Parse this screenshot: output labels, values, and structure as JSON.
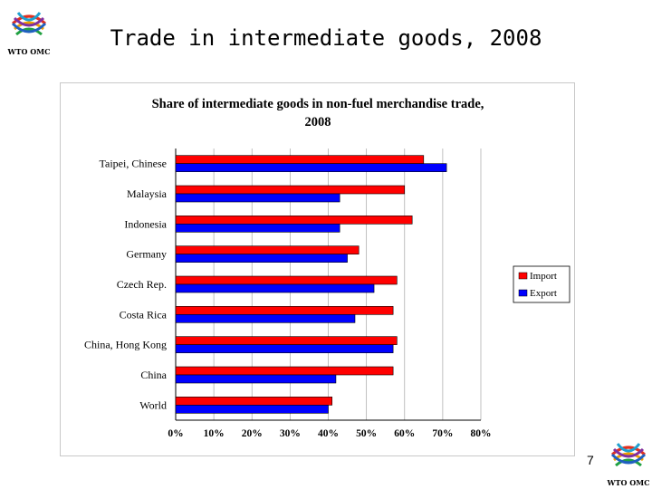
{
  "slide": {
    "title": "Trade in intermediate goods, 2008",
    "page_number": "7",
    "logo_text": "WTO OMC"
  },
  "chart_data": {
    "type": "bar",
    "orientation": "horizontal",
    "title": "Share of intermediate goods in non-fuel merchandise trade, 2008",
    "title_lines": [
      "Share of intermediate goods in non-fuel merchandise trade,",
      "2008"
    ],
    "categories": [
      "Taipei, Chinese",
      "Malaysia",
      "Indonesia",
      "Germany",
      "Czech Rep.",
      "Costa Rica",
      "China, Hong Kong",
      "China",
      "World"
    ],
    "series": [
      {
        "name": "Import",
        "color": "#ff0000",
        "values": [
          65,
          60,
          62,
          48,
          58,
          57,
          58,
          57,
          41
        ]
      },
      {
        "name": "Export",
        "color": "#0000ff",
        "values": [
          71,
          43,
          43,
          45,
          52,
          47,
          57,
          42,
          40
        ]
      }
    ],
    "xlim": [
      0,
      80
    ],
    "xticks": [
      0,
      10,
      20,
      30,
      40,
      50,
      60,
      70,
      80
    ],
    "xtick_labels": [
      "0%",
      "10%",
      "20%",
      "30%",
      "40%",
      "50%",
      "60%",
      "70%",
      "80%"
    ],
    "grid": "vertical",
    "legend": "right"
  }
}
